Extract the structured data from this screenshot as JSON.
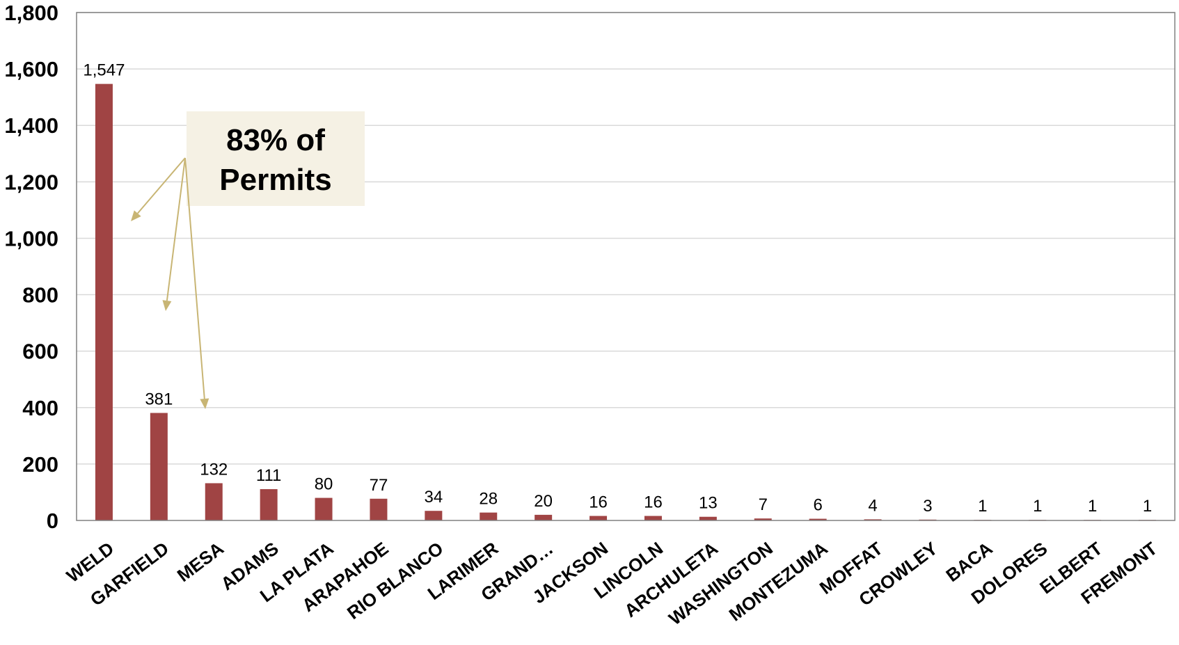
{
  "chart_data": {
    "type": "bar",
    "categories": [
      "WELD",
      "GARFIELD",
      "MESA",
      "ADAMS",
      "LA PLATA",
      "ARAPAHOE",
      "RIO BLANCO",
      "LARIMER",
      "GRAND…",
      "JACKSON",
      "LINCOLN",
      "ARCHULETA",
      "WASHINGTON",
      "MONTEZUMA",
      "MOFFAT",
      "CROWLEY",
      "BACA",
      "DOLORES",
      "ELBERT",
      "FREMONT"
    ],
    "values": [
      1547,
      381,
      132,
      111,
      80,
      77,
      34,
      28,
      20,
      16,
      16,
      13,
      7,
      6,
      4,
      3,
      1,
      1,
      1,
      1
    ],
    "data_labels": [
      "1,547",
      "381",
      "132",
      "111",
      "80",
      "77",
      "34",
      "28",
      "20",
      "16",
      "16",
      "13",
      "7",
      "6",
      "4",
      "3",
      "1",
      "1",
      "1",
      "1"
    ],
    "title": "",
    "xlabel": "",
    "ylabel": "",
    "ylim": [
      0,
      1800
    ],
    "yticks": [
      0,
      200,
      400,
      600,
      800,
      1000,
      1200,
      1400,
      1600,
      1800
    ],
    "ytick_labels": [
      "0",
      "200",
      "400",
      "600",
      "800",
      "1,000",
      "1,200",
      "1,400",
      "1,600",
      "1,800"
    ],
    "grid": true,
    "legend": "none",
    "bar_color": "#A04444",
    "annotation": {
      "lines": [
        "83% of",
        "Permits"
      ],
      "box_color": "#F5F1E4",
      "arrow_color": "#C8B574",
      "points_to": [
        "WELD",
        "GARFIELD",
        "MESA"
      ]
    }
  }
}
